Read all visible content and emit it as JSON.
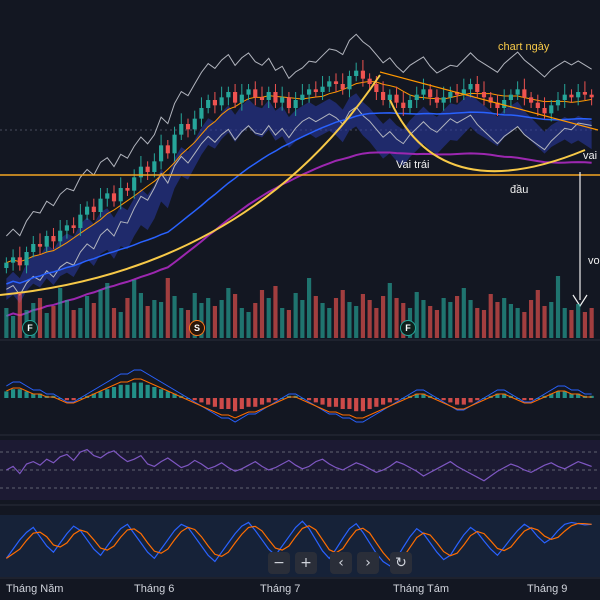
{
  "chart_data": {
    "type": "candlestick",
    "x_axis": {
      "tick_labels": [
        "Tháng Năm",
        "Tháng 6",
        "Tháng 7",
        "Tháng Tám",
        "Tháng 9"
      ]
    },
    "annotations": {
      "timeframe": "chart ngày",
      "left_shoulder": "Vai trái",
      "head": "đầu",
      "right_shoulder": "vai r",
      "edge_label": "vo"
    },
    "event_markers": [
      "F",
      "S",
      "F"
    ],
    "price_close": [
      34,
      36,
      33,
      38,
      41,
      40,
      44,
      42,
      46,
      48,
      47,
      52,
      55,
      53,
      58,
      60,
      57,
      62,
      61,
      66,
      70,
      68,
      72,
      78,
      75,
      82,
      86,
      84,
      88,
      92,
      95,
      93,
      96,
      98,
      94,
      97,
      99,
      96,
      95,
      98,
      94,
      96,
      92,
      95,
      97,
      99,
      98,
      100,
      102,
      101,
      99,
      104,
      106,
      103,
      101,
      98,
      95,
      97,
      94,
      92,
      95,
      97,
      99,
      96,
      94,
      96,
      98,
      97,
      99,
      101,
      98,
      96,
      94,
      92,
      95,
      97,
      99,
      96,
      94,
      92,
      90,
      93,
      95,
      97,
      96,
      98,
      97,
      96
    ],
    "volume": [
      30,
      22,
      45,
      28,
      35,
      40,
      25,
      32,
      50,
      38,
      28,
      30,
      42,
      35,
      48,
      55,
      30,
      26,
      40,
      58,
      45,
      32,
      38,
      36,
      60,
      42,
      30,
      28,
      45,
      35,
      40,
      32,
      38,
      50,
      44,
      30,
      26,
      35,
      48,
      40,
      52,
      30,
      28,
      45,
      38,
      60,
      42,
      35,
      30,
      40,
      48,
      36,
      32,
      44,
      38,
      30,
      42,
      55,
      40,
      35,
      30,
      46,
      38,
      32,
      28,
      40,
      36,
      42,
      50,
      38,
      30,
      28,
      44,
      36,
      40,
      34,
      30,
      26,
      38,
      48,
      32,
      36,
      62,
      30,
      28,
      34,
      26,
      30
    ],
    "macd_histogram": [
      3,
      4,
      4,
      3,
      2,
      2,
      1,
      1,
      0,
      -1,
      -1,
      0,
      1,
      2,
      3,
      4,
      5,
      6,
      6,
      7,
      7,
      6,
      5,
      4,
      3,
      2,
      1,
      0,
      -1,
      -2,
      -3,
      -4,
      -5,
      -5,
      -6,
      -5,
      -4,
      -4,
      -3,
      -2,
      -1,
      0,
      1,
      1,
      0,
      -1,
      -2,
      -3,
      -4,
      -4,
      -5,
      -5,
      -6,
      -6,
      -5,
      -4,
      -3,
      -2,
      -1,
      0,
      1,
      2,
      2,
      1,
      0,
      -1,
      -2,
      -3,
      -3,
      -2,
      -1,
      0,
      1,
      2,
      2,
      1,
      0,
      -1,
      -1,
      0,
      1,
      2,
      3,
      3,
      2,
      2,
      1,
      1
    ],
    "rsi": [
      55,
      58,
      52,
      60,
      62,
      59,
      64,
      61,
      66,
      68,
      63,
      70,
      72,
      67,
      65,
      69,
      71,
      66,
      62,
      64,
      67,
      60,
      58,
      62,
      65,
      61,
      57,
      59,
      63,
      60,
      56,
      58,
      61,
      57,
      54,
      56,
      59,
      62,
      58,
      55,
      57,
      60,
      63,
      59,
      56,
      58,
      62,
      64,
      60,
      57,
      55,
      58,
      61,
      59,
      56,
      53,
      55,
      58,
      62,
      60,
      57,
      54,
      50,
      53,
      56,
      59,
      62,
      58,
      55,
      52,
      49,
      46,
      50,
      54,
      57,
      60,
      58,
      55,
      53,
      56,
      59,
      61,
      58,
      56,
      59,
      62,
      60,
      58
    ],
    "stochastic_k": [
      30,
      45,
      60,
      72,
      80,
      65,
      50,
      40,
      55,
      70,
      82,
      75,
      60,
      45,
      35,
      50,
      65,
      78,
      85,
      70,
      55,
      40,
      30,
      45,
      60,
      75,
      85,
      80,
      65,
      50,
      35,
      25,
      40,
      55,
      70,
      82,
      88,
      75,
      60,
      45,
      35,
      50,
      65,
      80,
      90,
      78,
      60,
      42,
      30,
      45,
      62,
      78,
      86,
      72,
      55,
      38,
      25,
      18,
      30,
      48,
      65,
      78,
      70,
      55,
      40,
      28,
      35,
      52,
      68,
      80,
      72,
      58,
      45,
      35,
      48,
      62,
      75,
      85,
      78,
      65,
      55,
      62,
      75,
      85,
      88,
      86,
      84,
      85
    ]
  },
  "controls": {
    "zoom_out": "−",
    "zoom_in": "+",
    "scroll_left": "‹",
    "scroll_right": "›",
    "reset": "↻"
  },
  "colors": {
    "background": "#131722",
    "up": "#26a69a",
    "down": "#ef5350",
    "bollinger": "#b2b5be",
    "ma_blue": "#2962ff",
    "ma_purple": "#9c27b0",
    "annotation": "#f7c948",
    "support": "#f5a623",
    "cloud": "#2a3aa8"
  }
}
